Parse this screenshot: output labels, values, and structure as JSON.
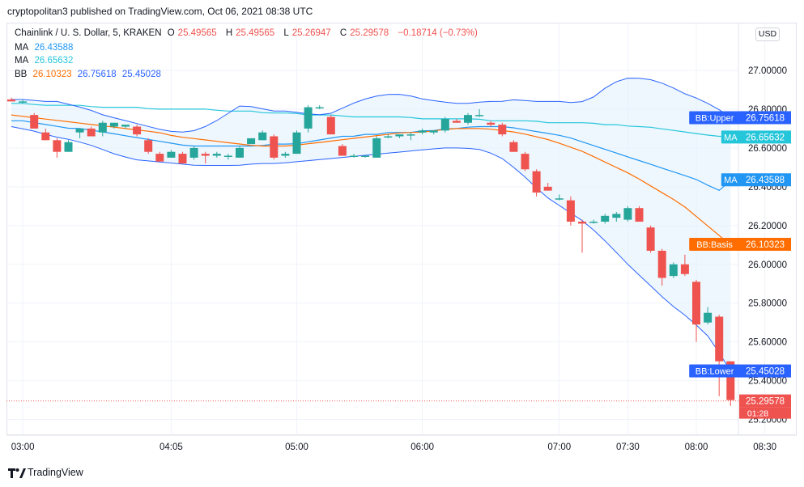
{
  "header": {
    "published": "cryptopolitan3 published on TradingView.com, Oct 06, 2021 08:38 UTC",
    "currency_button": "USD"
  },
  "legend": {
    "symbol": "Chainlink / U. S. Dollar, 5, KRAKEN",
    "o_label": "O",
    "o_value": "25.49565",
    "h_label": "H",
    "h_value": "25.49565",
    "l_label": "L",
    "l_value": "25.26947",
    "c_label": "C",
    "c_value": "25.29578",
    "change": "−0.18714 (−0.73%)",
    "ma1_label": "MA",
    "ma1_value": "26.43588",
    "ma2_label": "MA",
    "ma2_value": "26.65632",
    "bb_label": "BB",
    "bb_basis": "26.10323",
    "bb_upper": "26.75618",
    "bb_lower": "25.45028"
  },
  "footer": {
    "brand": "TradingView"
  },
  "colors": {
    "up": "#26a69a",
    "down": "#ef5350",
    "ma_fast": "#2196f3",
    "ma_slow": "#26c6da",
    "bb_basis": "#ff6d00",
    "bb_band": "#2962ff",
    "bb_fill": "#e3f2fd"
  },
  "chart_data": {
    "type": "candlestick",
    "ylim": [
      25.1,
      27.1
    ],
    "y_ticks": [
      "27.00000",
      "26.80000",
      "26.60000",
      "26.40000",
      "26.20000",
      "26.00000",
      "25.80000",
      "25.60000",
      "25.40000",
      "25.20000"
    ],
    "x_ticks": [
      {
        "label": "03:00",
        "i": 1
      },
      {
        "label": "04:05",
        "i": 14
      },
      {
        "label": "05:00",
        "i": 25
      },
      {
        "label": "06:00",
        "i": 36
      },
      {
        "label": "07:00",
        "i": 48
      },
      {
        "label": "07:30",
        "i": 54
      },
      {
        "label": "08:00",
        "i": 60
      },
      {
        "label": "08:30",
        "i": 66
      }
    ],
    "candles": [
      {
        "o": 26.85,
        "h": 26.86,
        "l": 26.84,
        "c": 26.84
      },
      {
        "o": 26.84,
        "h": 26.85,
        "l": 26.83,
        "c": 26.84
      },
      {
        "o": 26.77,
        "h": 26.78,
        "l": 26.7,
        "c": 26.7
      },
      {
        "o": 26.68,
        "h": 26.7,
        "l": 26.64,
        "c": 26.64
      },
      {
        "o": 26.64,
        "h": 26.65,
        "l": 26.55,
        "c": 26.58
      },
      {
        "o": 26.58,
        "h": 26.64,
        "l": 26.58,
        "c": 26.63
      },
      {
        "o": 26.68,
        "h": 26.7,
        "l": 26.65,
        "c": 26.7
      },
      {
        "o": 26.7,
        "h": 26.71,
        "l": 26.66,
        "c": 26.66
      },
      {
        "o": 26.68,
        "h": 26.74,
        "l": 26.66,
        "c": 26.73
      },
      {
        "o": 26.71,
        "h": 26.73,
        "l": 26.7,
        "c": 26.73
      },
      {
        "o": 26.71,
        "h": 26.72,
        "l": 26.7,
        "c": 26.72
      },
      {
        "o": 26.71,
        "h": 26.72,
        "l": 26.66,
        "c": 26.67
      },
      {
        "o": 26.64,
        "h": 26.65,
        "l": 26.57,
        "c": 26.58
      },
      {
        "o": 26.57,
        "h": 26.58,
        "l": 26.53,
        "c": 26.53
      },
      {
        "o": 26.55,
        "h": 26.59,
        "l": 26.55,
        "c": 26.58
      },
      {
        "o": 26.57,
        "h": 26.58,
        "l": 26.52,
        "c": 26.52
      },
      {
        "o": 26.55,
        "h": 26.61,
        "l": 26.54,
        "c": 26.6
      },
      {
        "o": 26.57,
        "h": 26.58,
        "l": 26.52,
        "c": 26.56
      },
      {
        "o": 26.56,
        "h": 26.58,
        "l": 26.55,
        "c": 26.57
      },
      {
        "o": 26.56,
        "h": 26.57,
        "l": 26.54,
        "c": 26.56
      },
      {
        "o": 26.55,
        "h": 26.61,
        "l": 26.55,
        "c": 26.6
      },
      {
        "o": 26.62,
        "h": 26.65,
        "l": 26.62,
        "c": 26.65
      },
      {
        "o": 26.64,
        "h": 26.69,
        "l": 26.64,
        "c": 26.68
      },
      {
        "o": 26.66,
        "h": 26.67,
        "l": 26.54,
        "c": 26.55
      },
      {
        "o": 26.56,
        "h": 26.58,
        "l": 26.55,
        "c": 26.57
      },
      {
        "o": 26.57,
        "h": 26.69,
        "l": 26.57,
        "c": 26.68
      },
      {
        "o": 26.7,
        "h": 26.82,
        "l": 26.68,
        "c": 26.81
      },
      {
        "o": 26.81,
        "h": 26.82,
        "l": 26.8,
        "c": 26.81
      },
      {
        "o": 26.76,
        "h": 26.77,
        "l": 26.67,
        "c": 26.67
      },
      {
        "o": 26.61,
        "h": 26.62,
        "l": 26.56,
        "c": 26.56
      },
      {
        "o": 26.56,
        "h": 26.57,
        "l": 26.55,
        "c": 26.56
      },
      {
        "o": 26.56,
        "h": 26.56,
        "l": 26.55,
        "c": 26.56
      },
      {
        "o": 26.55,
        "h": 26.66,
        "l": 26.55,
        "c": 26.65
      },
      {
        "o": 26.66,
        "h": 26.67,
        "l": 26.65,
        "c": 26.66
      },
      {
        "o": 26.66,
        "h": 26.67,
        "l": 26.65,
        "c": 26.67
      },
      {
        "o": 26.67,
        "h": 26.68,
        "l": 26.64,
        "c": 26.67
      },
      {
        "o": 26.68,
        "h": 26.7,
        "l": 26.67,
        "c": 26.69
      },
      {
        "o": 26.68,
        "h": 26.69,
        "l": 26.67,
        "c": 26.69
      },
      {
        "o": 26.69,
        "h": 26.76,
        "l": 26.68,
        "c": 26.75
      },
      {
        "o": 26.74,
        "h": 26.75,
        "l": 26.73,
        "c": 26.73
      },
      {
        "o": 26.73,
        "h": 26.78,
        "l": 26.72,
        "c": 26.77
      },
      {
        "o": 26.77,
        "h": 26.8,
        "l": 26.76,
        "c": 26.77
      },
      {
        "o": 26.73,
        "h": 26.74,
        "l": 26.71,
        "c": 26.72
      },
      {
        "o": 26.72,
        "h": 26.73,
        "l": 26.66,
        "c": 26.67
      },
      {
        "o": 26.63,
        "h": 26.64,
        "l": 26.58,
        "c": 26.58
      },
      {
        "o": 26.57,
        "h": 26.58,
        "l": 26.48,
        "c": 26.49
      },
      {
        "o": 26.48,
        "h": 26.49,
        "l": 26.35,
        "c": 26.37
      },
      {
        "o": 26.4,
        "h": 26.42,
        "l": 26.38,
        "c": 26.38
      },
      {
        "o": 26.34,
        "h": 26.36,
        "l": 26.33,
        "c": 26.34
      },
      {
        "o": 26.33,
        "h": 26.35,
        "l": 26.2,
        "c": 26.22
      },
      {
        "o": 26.22,
        "h": 26.23,
        "l": 26.06,
        "c": 26.21
      },
      {
        "o": 26.22,
        "h": 26.23,
        "l": 26.21,
        "c": 26.22
      },
      {
        "o": 26.22,
        "h": 26.26,
        "l": 26.21,
        "c": 26.25
      },
      {
        "o": 26.24,
        "h": 26.27,
        "l": 26.22,
        "c": 26.26
      },
      {
        "o": 26.23,
        "h": 26.3,
        "l": 26.22,
        "c": 26.29
      },
      {
        "o": 26.29,
        "h": 26.3,
        "l": 26.22,
        "c": 26.22
      },
      {
        "o": 26.19,
        "h": 26.2,
        "l": 26.06,
        "c": 26.07
      },
      {
        "o": 26.07,
        "h": 26.08,
        "l": 25.89,
        "c": 25.93
      },
      {
        "o": 25.94,
        "h": 26.01,
        "l": 25.93,
        "c": 26.0
      },
      {
        "o": 26.0,
        "h": 26.05,
        "l": 25.94,
        "c": 25.95
      },
      {
        "o": 25.91,
        "h": 25.92,
        "l": 25.6,
        "c": 25.69
      },
      {
        "o": 25.7,
        "h": 25.78,
        "l": 25.69,
        "c": 25.75
      },
      {
        "o": 25.73,
        "h": 25.74,
        "l": 25.32,
        "c": 25.5
      },
      {
        "o": 25.5,
        "h": 25.5,
        "l": 25.27,
        "c": 25.3
      }
    ],
    "ma_fast": [
      26.74,
      26.74,
      26.73,
      26.72,
      26.71,
      26.7,
      26.7,
      26.69,
      26.68,
      26.67,
      26.66,
      26.65,
      26.64,
      26.63,
      26.62,
      26.61,
      26.61,
      26.61,
      26.61,
      26.61,
      26.61,
      26.61,
      26.62,
      26.62,
      26.62,
      26.63,
      26.64,
      26.65,
      26.66,
      26.66,
      26.67,
      26.67,
      26.68,
      26.68,
      26.68,
      26.69,
      26.69,
      26.7,
      26.7,
      26.71,
      26.71,
      26.71,
      26.71,
      26.7,
      26.69,
      26.68,
      26.67,
      26.66,
      26.64,
      26.62,
      26.6,
      26.58,
      26.56,
      26.54,
      26.52,
      26.5,
      26.48,
      26.46,
      26.44,
      26.41,
      26.38,
      26.43
    ],
    "ma_slow": [
      26.83,
      26.83,
      26.82,
      26.82,
      26.82,
      26.82,
      26.81,
      26.81,
      26.81,
      26.81,
      26.8,
      26.8,
      26.8,
      26.8,
      26.8,
      26.79,
      26.79,
      26.79,
      26.78,
      26.78,
      26.78,
      26.77,
      26.77,
      26.77,
      26.76,
      26.76,
      26.76,
      26.76,
      26.76,
      26.75,
      26.75,
      26.75,
      26.75,
      26.75,
      26.74,
      26.74,
      26.74,
      26.74,
      26.73,
      26.73,
      26.73,
      26.73,
      26.72,
      26.72,
      26.71,
      26.71,
      26.7,
      26.69,
      26.68,
      26.67,
      26.66,
      26.66
    ],
    "bb_basis": [
      26.77,
      26.76,
      26.75,
      26.74,
      26.73,
      26.72,
      26.71,
      26.7,
      26.69,
      26.68,
      26.66,
      26.65,
      26.64,
      26.63,
      26.62,
      26.61,
      26.61,
      26.61,
      26.62,
      26.63,
      26.64,
      26.65,
      26.66,
      26.67,
      26.68,
      26.68,
      26.69,
      26.7,
      26.7,
      26.7,
      26.69,
      26.68,
      26.66,
      26.64,
      26.61,
      26.58,
      26.54,
      26.5,
      26.46,
      26.41,
      26.36,
      26.31,
      26.24,
      26.17,
      26.1
    ],
    "bb_upper": [
      26.85,
      26.85,
      26.84,
      26.84,
      26.82,
      26.8,
      26.77,
      26.75,
      26.73,
      26.71,
      26.69,
      26.68,
      26.69,
      26.72,
      26.77,
      26.82,
      26.81,
      26.79,
      26.79,
      26.78,
      26.77,
      26.78,
      26.82,
      26.85,
      26.87,
      26.88,
      26.87,
      26.85,
      26.84,
      26.83,
      26.83,
      26.84,
      26.84,
      26.85,
      26.84,
      26.84,
      26.84,
      26.83,
      26.86,
      26.92,
      26.96,
      26.96,
      26.95,
      26.92,
      26.88,
      26.85,
      26.81,
      26.76
    ],
    "bb_lower": [
      26.71,
      26.69,
      26.66,
      26.64,
      26.61,
      26.57,
      26.54,
      26.53,
      26.52,
      26.51,
      26.51,
      26.51,
      26.52,
      26.52,
      26.53,
      26.54,
      26.55,
      26.56,
      26.57,
      26.58,
      26.59,
      26.6,
      26.6,
      26.59,
      26.54,
      26.45,
      26.35,
      26.28,
      26.21,
      26.11,
      26.0,
      25.9,
      25.8,
      25.72,
      25.62,
      25.45
    ],
    "last_price_line": 25.29578,
    "last_price_timer": "01:28",
    "price_labels": [
      {
        "name": "BB:Upper",
        "value": "26.75618",
        "color": "#2962ff"
      },
      {
        "name": "MA",
        "value": "26.65632",
        "color": "#26c6da"
      },
      {
        "name": "MA",
        "value": "26.43588",
        "color": "#2196f3"
      },
      {
        "name": "BB:Basis",
        "value": "26.10323",
        "color": "#ff6d00"
      },
      {
        "name": "BB:Lower",
        "value": "25.45028",
        "color": "#2962ff"
      },
      {
        "name": "",
        "value": "25.29578",
        "color": "#ef5350"
      }
    ]
  }
}
